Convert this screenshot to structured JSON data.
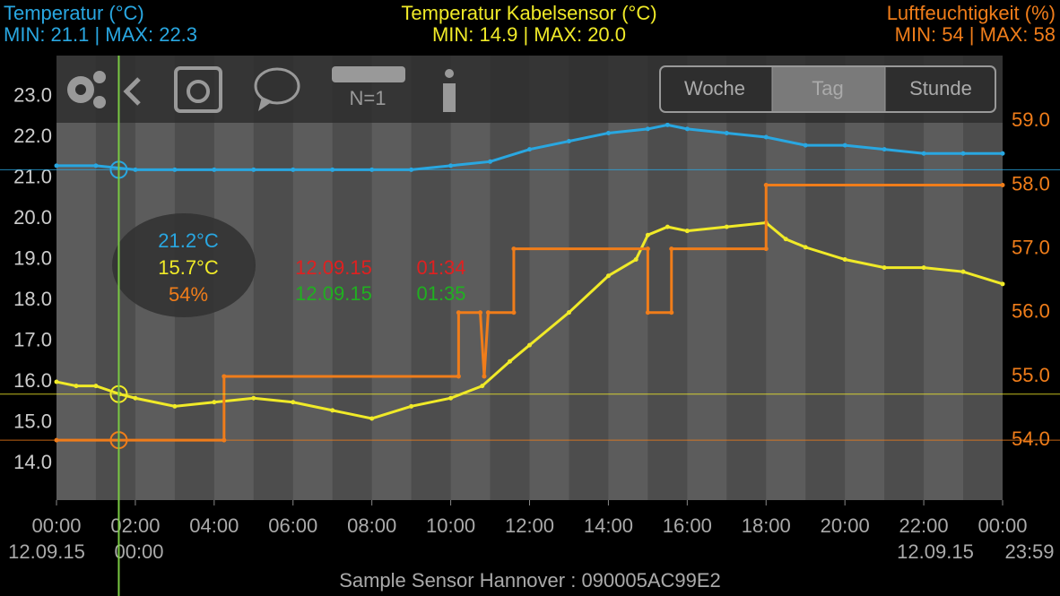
{
  "chart_data": {
    "type": "line",
    "xlim": [
      0,
      24
    ],
    "xticks": [
      {
        "value": 0,
        "label": "00:00"
      },
      {
        "value": 2,
        "label": "02:00"
      },
      {
        "value": 4,
        "label": "04:00"
      },
      {
        "value": 6,
        "label": "06:00"
      },
      {
        "value": 8,
        "label": "08:00"
      },
      {
        "value": 10,
        "label": "10:00"
      },
      {
        "value": 12,
        "label": "12:00"
      },
      {
        "value": 14,
        "label": "14:00"
      },
      {
        "value": 16,
        "label": "16:00"
      },
      {
        "value": 18,
        "label": "18:00"
      },
      {
        "value": 20,
        "label": "20:00"
      },
      {
        "value": 22,
        "label": "22:00"
      },
      {
        "value": 24,
        "label": "00:00"
      }
    ],
    "ylim": [
      13.1,
      24.0
    ],
    "yticks": [
      {
        "value": 14,
        "label": "14.0"
      },
      {
        "value": 15,
        "label": "15.0"
      },
      {
        "value": 16,
        "label": "16.0"
      },
      {
        "value": 17,
        "label": "17.0"
      },
      {
        "value": 18,
        "label": "18.0"
      },
      {
        "value": 19,
        "label": "19.0"
      },
      {
        "value": 20,
        "label": "20.0"
      },
      {
        "value": 21,
        "label": "21.0"
      },
      {
        "value": 22,
        "label": "22.0"
      },
      {
        "value": 23,
        "label": "23.0"
      }
    ],
    "y2lim": [
      53.06,
      60.03
    ],
    "y2ticks": [
      {
        "value": 54,
        "label": "54.0"
      },
      {
        "value": 55,
        "label": "55.0"
      },
      {
        "value": 56,
        "label": "56.0"
      },
      {
        "value": 57,
        "label": "57.0"
      },
      {
        "value": 58,
        "label": "58.0"
      },
      {
        "value": 59,
        "label": "59.0"
      }
    ],
    "series": [
      {
        "name": "Temperatur (°C)",
        "subtitle": "MIN: 21.1 | MAX: 22.3",
        "color": "#29a7e1",
        "x": [
          0,
          1,
          2,
          3,
          4,
          5,
          6,
          7,
          8,
          9,
          10,
          11,
          12,
          13,
          14,
          15,
          15.5,
          16,
          17,
          18,
          19,
          20,
          21,
          22,
          23,
          24
        ],
        "values": [
          21.3,
          21.3,
          21.2,
          21.2,
          21.2,
          21.2,
          21.2,
          21.2,
          21.2,
          21.2,
          21.3,
          21.4,
          21.7,
          21.9,
          22.1,
          22.2,
          22.3,
          22.2,
          22.1,
          22.0,
          21.8,
          21.8,
          21.7,
          21.6,
          21.6,
          21.6
        ]
      },
      {
        "name": "Temperatur Kabelsensor (°C)",
        "subtitle": "MIN: 14.9 | MAX: 20.0",
        "color": "#f0ea28",
        "x": [
          0,
          0.5,
          1,
          1.6,
          2,
          3,
          4,
          5,
          6,
          7,
          8,
          9,
          10,
          10.8,
          11.5,
          12,
          13,
          14,
          14.7,
          15,
          15.5,
          16,
          17,
          18,
          18.5,
          19,
          20,
          21,
          22,
          23,
          24
        ],
        "values": [
          16.0,
          15.9,
          15.9,
          15.7,
          15.6,
          15.4,
          15.5,
          15.6,
          15.5,
          15.3,
          15.1,
          15.4,
          15.6,
          15.9,
          16.5,
          16.9,
          17.7,
          18.6,
          19.0,
          19.6,
          19.8,
          19.7,
          19.8,
          19.9,
          19.5,
          19.3,
          19.0,
          18.8,
          18.8,
          18.7,
          18.4
        ]
      },
      {
        "name": "Luftfeuchtigkeit (%)",
        "subtitle": "MIN: 54 | MAX: 58",
        "color": "#f07d1a",
        "axis": "y2",
        "x": [
          0,
          4.25,
          4.25,
          10.2,
          10.2,
          10.75,
          10.85,
          10.95,
          11.6,
          11.6,
          15.0,
          15.0,
          15.6,
          15.6,
          18.0,
          18.0,
          24
        ],
        "values": [
          54,
          54,
          55,
          55,
          56,
          56,
          55,
          56,
          56,
          57,
          57,
          56,
          56,
          57,
          57,
          58,
          58
        ]
      }
    ],
    "cursor": {
      "x": 1.58,
      "values": [
        21.2,
        15.7,
        54
      ],
      "value_labels": [
        "21.2°C",
        "15.7°C",
        "54%"
      ]
    },
    "marker_red": {
      "date": "12.09.15",
      "time": "01:34"
    },
    "marker_green": {
      "date": "12.09.15",
      "time": "01:35"
    },
    "start_date": "12.09.15",
    "start_time": "00:00",
    "end_date": "12.09.15",
    "end_time": "23:59",
    "footer": "Sample Sensor Hannover : 090005AC99E2",
    "toolbar": {
      "sample_count": "N=1",
      "ranges": [
        "Woche",
        "Tag",
        "Stunde"
      ]
    }
  }
}
